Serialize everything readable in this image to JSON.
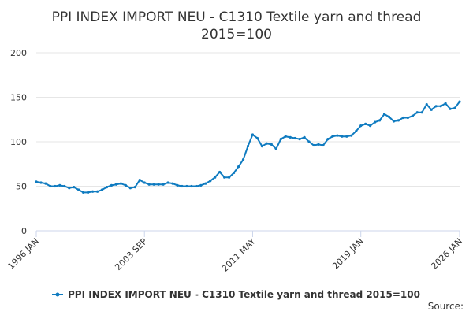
{
  "chart_data": {
    "type": "line",
    "title": "PPI INDEX IMPORT NEU - C1310 Textile yarn and thread",
    "subtitle": "2015=100",
    "source": "Source:",
    "categories": [
      "1996 JAN",
      null,
      null,
      null,
      null,
      null,
      null,
      null,
      null,
      null,
      null,
      null,
      null,
      null,
      null,
      null,
      null,
      null,
      null,
      null,
      null,
      null,
      null,
      "2003 SEP",
      null,
      null,
      null,
      null,
      null,
      null,
      null,
      null,
      null,
      null,
      null,
      null,
      null,
      null,
      null,
      null,
      null,
      null,
      null,
      null,
      null,
      null,
      "2011 MAY",
      null,
      null,
      null,
      null,
      null,
      null,
      null,
      null,
      null,
      null,
      null,
      null,
      null,
      null,
      null,
      null,
      null,
      null,
      null,
      null,
      null,
      null,
      "2019 JAN",
      null,
      null,
      null,
      null,
      null,
      null,
      null,
      null,
      null,
      null,
      null,
      null,
      null,
      null,
      null,
      null,
      null,
      null,
      null,
      null,
      "2026 JAN"
    ],
    "series": [
      {
        "name": "PPI INDEX IMPORT NEU - C1310 Textile yarn and thread 2015=100",
        "color": "#0f7bc0",
        "values": [
          55,
          54,
          53,
          50,
          50,
          51,
          50,
          48,
          49,
          46,
          43,
          43,
          44,
          44,
          46,
          49,
          51,
          52,
          53,
          51,
          48,
          49,
          57,
          54,
          52,
          52,
          52,
          52,
          54,
          53,
          51,
          50,
          50,
          50,
          50,
          51,
          53,
          56,
          60,
          66,
          60,
          60,
          65,
          72,
          80,
          95,
          108,
          104,
          95,
          98,
          97,
          92,
          103,
          106,
          105,
          104,
          103,
          105,
          100,
          96,
          97,
          96,
          103,
          106,
          107,
          106,
          106,
          107,
          112,
          118,
          120,
          118,
          122,
          124,
          131,
          128,
          123,
          124,
          127,
          127,
          129,
          133,
          133,
          142,
          136,
          140,
          140,
          143,
          137,
          138,
          145
        ]
      }
    ],
    "ylim": [
      0,
      200
    ],
    "yticks": [
      0,
      50,
      100,
      150,
      200
    ],
    "grid": true,
    "legend": "bottom"
  }
}
